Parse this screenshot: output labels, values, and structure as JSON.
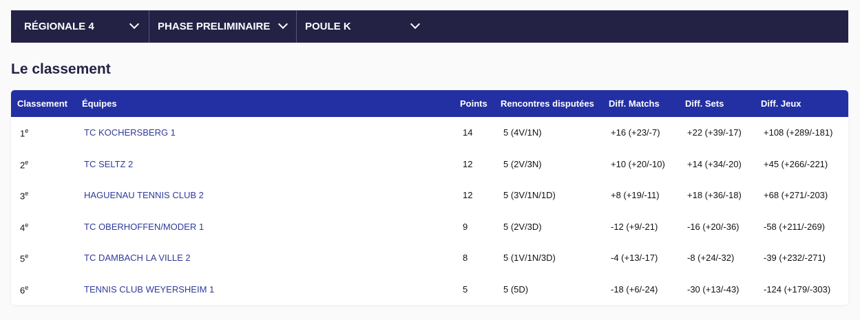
{
  "filters": [
    {
      "label": "RÉGIONALE 4",
      "icon": "chevron-down-icon"
    },
    {
      "label": "PHASE PRELIMINAIRE",
      "icon": "chevron-down-icon"
    },
    {
      "label": "POULE K",
      "icon": "chevron-down-icon"
    }
  ],
  "title": "Le classement",
  "table": {
    "headers": [
      "Classement",
      "Équipes",
      "Points",
      "Rencontres disputées",
      "Diff. Matchs",
      "Diff. Sets",
      "Diff. Jeux"
    ],
    "rank_suffix": "e",
    "rows": [
      {
        "rank": "1",
        "team": "TC KOCHERSBERG 1",
        "points": "14",
        "rencontres": "5 (4V/1N)",
        "matchs": "+16 (+23/-7)",
        "sets": "+22 (+39/-17)",
        "jeux": "+108 (+289/-181)"
      },
      {
        "rank": "2",
        "team": "TC SELTZ 2",
        "points": "12",
        "rencontres": "5 (2V/3N)",
        "matchs": "+10 (+20/-10)",
        "sets": "+14 (+34/-20)",
        "jeux": "+45 (+266/-221)"
      },
      {
        "rank": "3",
        "team": "HAGUENAU TENNIS CLUB 2",
        "points": "12",
        "rencontres": "5 (3V/1N/1D)",
        "matchs": "+8 (+19/-11)",
        "sets": "+18 (+36/-18)",
        "jeux": "+68 (+271/-203)"
      },
      {
        "rank": "4",
        "team": "TC OBERHOFFEN/MODER 1",
        "points": "9",
        "rencontres": "5 (2V/3D)",
        "matchs": "-12 (+9/-21)",
        "sets": "-16 (+20/-36)",
        "jeux": "-58 (+211/-269)"
      },
      {
        "rank": "5",
        "team": "TC DAMBACH LA VILLE 2",
        "points": "8",
        "rencontres": "5 (1V/1N/3D)",
        "matchs": "-4 (+13/-17)",
        "sets": "-8 (+24/-32)",
        "jeux": "-39 (+232/-271)"
      },
      {
        "rank": "6",
        "team": "TENNIS CLUB WEYERSHEIM 1",
        "points": "5",
        "rencontres": "5 (5D)",
        "matchs": "-18 (+6/-24)",
        "sets": "-30 (+13/-43)",
        "jeux": "-124 (+179/-303)"
      }
    ]
  }
}
